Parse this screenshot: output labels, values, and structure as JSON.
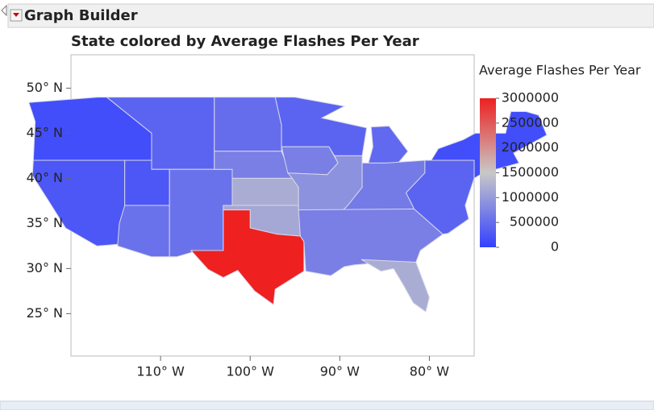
{
  "window_title": "Graph Builder",
  "chart_data": {
    "type": "map",
    "title": "State colored by Average Flashes Per Year",
    "legend_title": "Average Flashes Per Year",
    "values": [
      150000,
      250000,
      400000,
      250000,
      550000,
      550000,
      500000,
      700000,
      1200000,
      1150000,
      3000000,
      400000,
      700000,
      900000,
      450000,
      650000,
      700000,
      1200000,
      400000,
      150000
    ],
    "colors": [
      "#3340ff",
      "#c8c8c8",
      "#ee2020"
    ],
    "clim": [
      0,
      3000000
    ],
    "cticks": [
      0,
      500000,
      1000000,
      1500000,
      2000000,
      2500000,
      3000000
    ],
    "xlim": [
      -120,
      -75
    ],
    "ylim": [
      20.3,
      53.7
    ],
    "xticks": [
      {
        "value": -110,
        "label": "110° W"
      },
      {
        "value": -100,
        "label": "100° W"
      },
      {
        "value": -90,
        "label": "90° W"
      },
      {
        "value": -80,
        "label": "80° W"
      }
    ],
    "yticks": [
      {
        "value": 25,
        "label": "25° N"
      },
      {
        "value": 30,
        "label": "30° N"
      },
      {
        "value": 35,
        "label": "35° N"
      },
      {
        "value": 40,
        "label": "40° N"
      },
      {
        "value": 45,
        "label": "45° N"
      },
      {
        "value": 50,
        "label": "50° N"
      }
    ]
  }
}
